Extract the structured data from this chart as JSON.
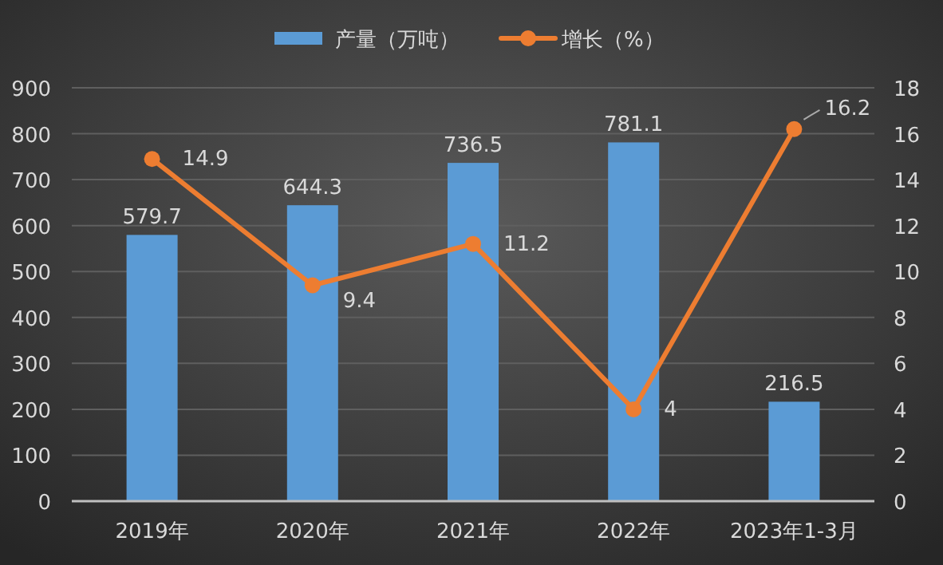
{
  "chart_data": {
    "type": "bar",
    "categories": [
      "2019年",
      "2020年",
      "2021年",
      "2022年",
      "2023年1-3月"
    ],
    "series": [
      {
        "name": "产量（万吨）",
        "color": "#5b9bd5",
        "values": [
          579.7,
          644.3,
          736.5,
          781.1,
          216.5
        ]
      },
      {
        "name": "增长（%）",
        "type": "line",
        "axis": "y2",
        "color": "#ed7d31",
        "marker": "circle",
        "values": [
          14.9,
          9.4,
          11.2,
          4,
          16.2
        ]
      }
    ],
    "ylim": [
      0,
      900
    ],
    "yticks": [
      0,
      100,
      200,
      300,
      400,
      500,
      600,
      700,
      800,
      900
    ],
    "y2lim": [
      0,
      18
    ],
    "y2ticks": [
      0,
      2,
      4,
      6,
      8,
      10,
      12,
      14,
      16,
      18
    ],
    "grid": "y",
    "legend": "top",
    "data_labels": true
  }
}
